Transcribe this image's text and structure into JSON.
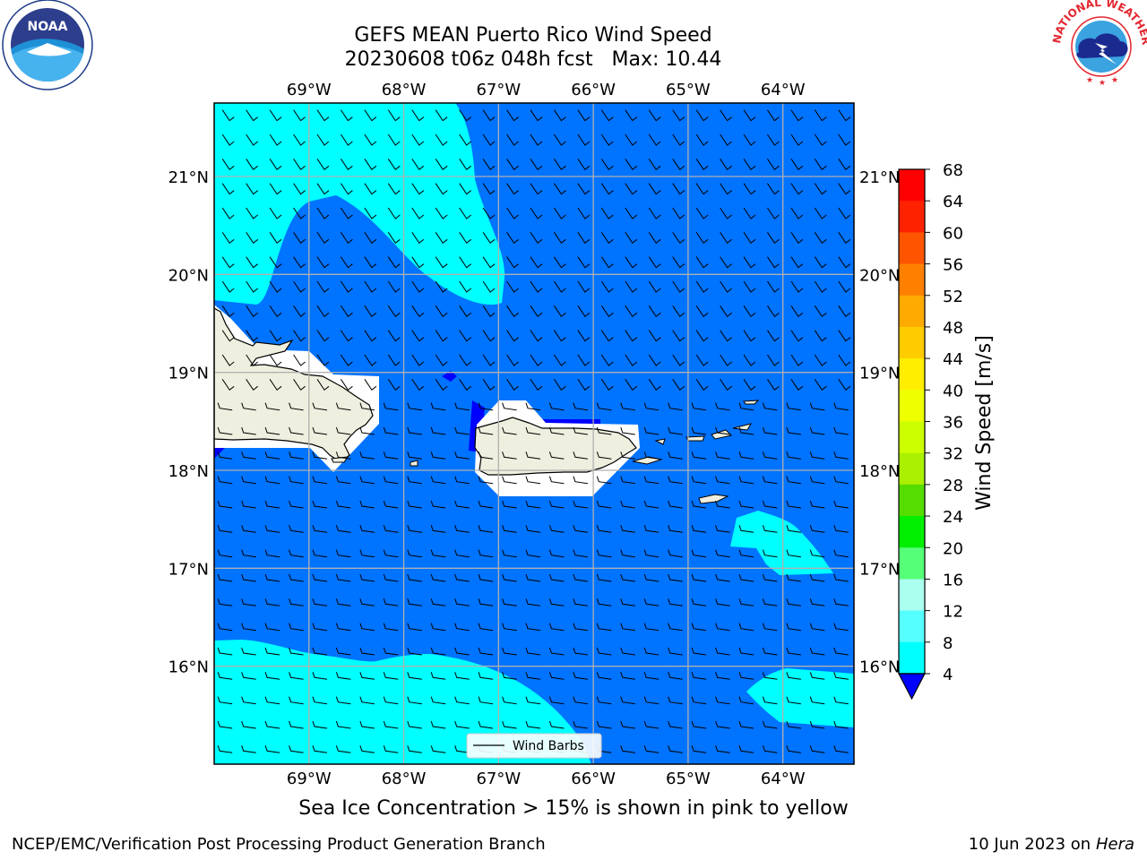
{
  "title": {
    "line1": "GEFS MEAN Puerto Rico Wind Speed",
    "line2": "20230608 t06z 048h fcst   Max: 10.44"
  },
  "subtitle": "Sea Ice Concentration > 15% is shown in pink to yellow",
  "footer": {
    "left": "NCEP/EMC/Verification Post Processing Product Generation Branch",
    "date": "10 Jun 2023 on",
    "machine": "Hera"
  },
  "logos": {
    "left": "NOAA",
    "right": "NATIONAL WEATHER SERVICE"
  },
  "map": {
    "lon_labels": [
      "69°W",
      "68°W",
      "67°W",
      "66°W",
      "65°W",
      "64°W"
    ],
    "lat_labels": [
      "21°N",
      "20°N",
      "19°N",
      "18°N",
      "17°N",
      "16°N"
    ],
    "lon_range": [
      -70.0,
      -63.25
    ],
    "lat_range": [
      15.0,
      21.75
    ],
    "legend": "Wind Barbs",
    "colors": {
      "base": "#0073ff",
      "light": "#00ffff",
      "deep": "#0000ff",
      "land": "#efefdf"
    }
  },
  "colorbar": {
    "label": "Wind Speed [m/s]",
    "ticks": [
      "68",
      "64",
      "60",
      "56",
      "52",
      "48",
      "44",
      "40",
      "36",
      "32",
      "28",
      "24",
      "20",
      "16",
      "12",
      "8",
      "4"
    ],
    "colors": [
      "#ff0000",
      "#ff2200",
      "#ff5500",
      "#ff8000",
      "#ffaa00",
      "#ffcc00",
      "#ffee00",
      "#eeff00",
      "#ccff00",
      "#aaf000",
      "#55dd00",
      "#00ee00",
      "#55ff77",
      "#aaffee",
      "#55ffff",
      "#00ffff",
      "#0073ff"
    ],
    "under_color": "#0000ff"
  }
}
